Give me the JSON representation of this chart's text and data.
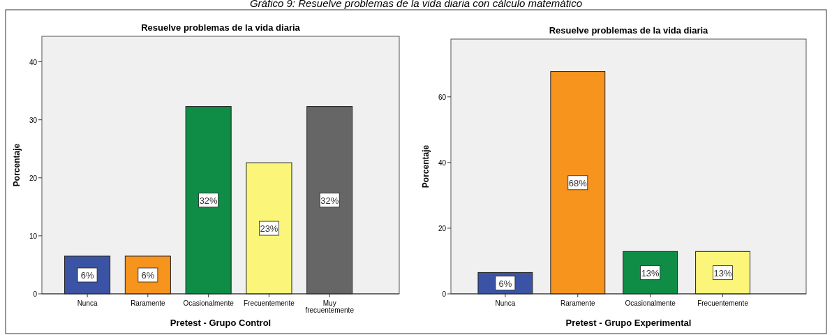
{
  "chart_data": [
    {
      "type": "bar",
      "title": "Resuelve problemas de la vida diaria",
      "xlabel": "Pretest - Grupo Control",
      "ylabel": "Porcentaje",
      "annotations": [
        "Gráfico 9: Resuelve problemas de la vida diaria con cálculo matemático"
      ],
      "categories": [
        "Nunca",
        "Raramente",
        "Ocasionalmente",
        "Frecuentemente",
        "Muy frecuentemente"
      ],
      "values": [
        6.5,
        6.5,
        32.3,
        22.6,
        32.3
      ],
      "colors": [
        "#3a53a4",
        "#f7941d",
        "#0f8c45",
        "#fbf579",
        "#666666"
      ],
      "value_labels": [
        "6%",
        "6%",
        "32%",
        "23%",
        "32%"
      ],
      "ylim": [
        0,
        44.4
      ],
      "yticks": [
        0,
        10,
        20,
        30,
        40
      ],
      "grid": false
    },
    {
      "type": "bar",
      "title": "Resuelve problemas de la vida diaria",
      "xlabel": "Pretest - Grupo Experimental",
      "ylabel": "Porcentaje",
      "categories": [
        "Nunca",
        "Raramente",
        "Ocasionalmente",
        "Frecuentemente"
      ],
      "values": [
        6.5,
        67.7,
        12.9,
        12.9
      ],
      "colors": [
        "#3a53a4",
        "#f7941d",
        "#0f8c45",
        "#fbf579"
      ],
      "value_labels": [
        "6%",
        "68%",
        "13%",
        "13%"
      ],
      "ylim": [
        0,
        77.6
      ],
      "yticks": [
        0,
        20,
        40,
        60
      ],
      "grid": false
    }
  ]
}
